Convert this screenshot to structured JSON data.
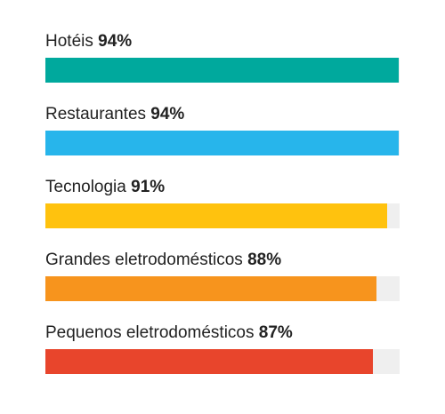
{
  "chart_data": {
    "type": "bar",
    "orientation": "horizontal",
    "categories": [
      "Hotéis",
      "Restaurantes",
      "Tecnologia",
      "Grandes eletrodomésticos",
      "Pequenos eletrodomésticos"
    ],
    "values": [
      94,
      94,
      91,
      88,
      87
    ],
    "value_labels": [
      "94%",
      "94%",
      "91%",
      "88%",
      "87%"
    ],
    "colors": [
      "#00a99d",
      "#27b5eb",
      "#ffc20e",
      "#f7941d",
      "#e8452c"
    ],
    "track_color": "#efefef",
    "xlim": [
      0,
      100
    ],
    "title": "",
    "xlabel": "",
    "ylabel": "",
    "grid": false,
    "legend": "none"
  }
}
